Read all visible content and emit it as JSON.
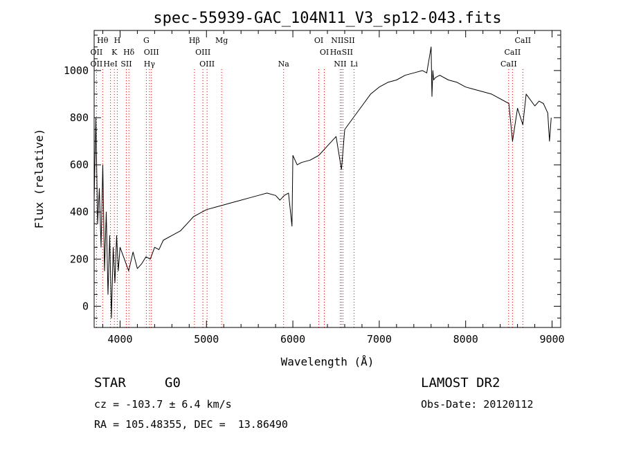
{
  "chart_data": {
    "type": "line",
    "title": "spec-55939-GAC_104N11_V3_sp12-043.fits",
    "xlabel": "Wavelength (Å)",
    "ylabel": "Flux (relative)",
    "xlim": [
      3700,
      9100
    ],
    "ylim": [
      -90,
      1170
    ],
    "xticks": [
      4000,
      5000,
      6000,
      7000,
      8000,
      9000
    ],
    "yticks": [
      0,
      200,
      400,
      600,
      800,
      1000
    ],
    "x_minor_step": 200,
    "y_minor_step": 50,
    "grid": false,
    "series": [
      {
        "color": "#000000",
        "x": [
          3700,
          3720,
          3740,
          3760,
          3780,
          3800,
          3820,
          3840,
          3860,
          3880,
          3900,
          3920,
          3940,
          3960,
          3980,
          4000,
          4050,
          4100,
          4150,
          4200,
          4250,
          4300,
          4350,
          4400,
          4450,
          4500,
          4600,
          4700,
          4800,
          4850,
          4900,
          5000,
          5100,
          5200,
          5300,
          5400,
          5500,
          5600,
          5700,
          5800,
          5850,
          5900,
          5950,
          5990,
          6000,
          6050,
          6100,
          6200,
          6300,
          6400,
          6500,
          6563,
          6600,
          6700,
          6800,
          6900,
          7000,
          7100,
          7200,
          7300,
          7400,
          7500,
          7550,
          7600,
          7610,
          7620,
          7630,
          7650,
          7700,
          7800,
          7900,
          8000,
          8100,
          8200,
          8300,
          8400,
          8500,
          8542,
          8600,
          8662,
          8700,
          8800,
          8850,
          8900,
          8950,
          8970,
          8990
        ],
        "y": [
          450,
          800,
          350,
          500,
          250,
          600,
          150,
          400,
          50,
          300,
          -50,
          250,
          100,
          300,
          150,
          250,
          200,
          150,
          230,
          160,
          180,
          210,
          200,
          250,
          240,
          280,
          300,
          320,
          360,
          380,
          390,
          410,
          420,
          430,
          440,
          450,
          460,
          470,
          480,
          470,
          450,
          470,
          480,
          340,
          640,
          600,
          610,
          620,
          640,
          680,
          720,
          580,
          750,
          800,
          850,
          900,
          930,
          950,
          960,
          980,
          990,
          1000,
          990,
          1100,
          890,
          1000,
          960,
          970,
          980,
          960,
          950,
          930,
          920,
          910,
          900,
          880,
          860,
          700,
          840,
          770,
          900,
          850,
          870,
          860,
          820,
          700,
          800
        ]
      }
    ],
    "lines": [
      {
        "label": "Hθ",
        "x": 3798,
        "row": 1
      },
      {
        "label": "H",
        "x": 3968,
        "row": 1
      },
      {
        "label": "G",
        "x": 4304,
        "row": 1
      },
      {
        "label": "Hβ",
        "x": 4861,
        "row": 1
      },
      {
        "label": "Mg",
        "x": 5175,
        "row": 1
      },
      {
        "label": "OI",
        "x": 6300,
        "row": 1
      },
      {
        "label": "NIISII",
        "x": 6580,
        "row": 1
      },
      {
        "label": "CaII",
        "x": 8662,
        "row": 1
      },
      {
        "label": "OII",
        "x": 3727,
        "row": 2
      },
      {
        "label": "K",
        "x": 3934,
        "row": 2
      },
      {
        "label": "Hδ",
        "x": 4102,
        "row": 2
      },
      {
        "label": "OIII",
        "x": 4363,
        "row": 2
      },
      {
        "label": "OIII",
        "x": 4959,
        "row": 2
      },
      {
        "label": "OI",
        "x": 6364,
        "row": 2
      },
      {
        "label": "HαSII",
        "x": 6563,
        "row": 2
      },
      {
        "label": "CaII",
        "x": 8542,
        "row": 2
      },
      {
        "label": "OII",
        "x": 3727,
        "row": 3
      },
      {
        "label": "HeI",
        "x": 3889,
        "row": 3
      },
      {
        "label": "SII",
        "x": 4072,
        "row": 3
      },
      {
        "label": "Hγ",
        "x": 4340,
        "row": 3
      },
      {
        "label": "OIII",
        "x": 5007,
        "row": 3
      },
      {
        "label": "Na",
        "x": 5893,
        "row": 3
      },
      {
        "label": "NII",
        "x": 6548,
        "row": 3
      },
      {
        "label": "Li",
        "x": 6708,
        "row": 3
      },
      {
        "label": "CaII",
        "x": 8498,
        "row": 3
      }
    ]
  },
  "info": {
    "object_class": "STAR",
    "subclass": "G0",
    "survey": "LAMOST DR2",
    "redshift": "cz = -103.7 ± 6.4 km/s",
    "obs_date": "Obs-Date: 20120112",
    "coords": "RA = 105.48355, DEC =  13.86490"
  }
}
